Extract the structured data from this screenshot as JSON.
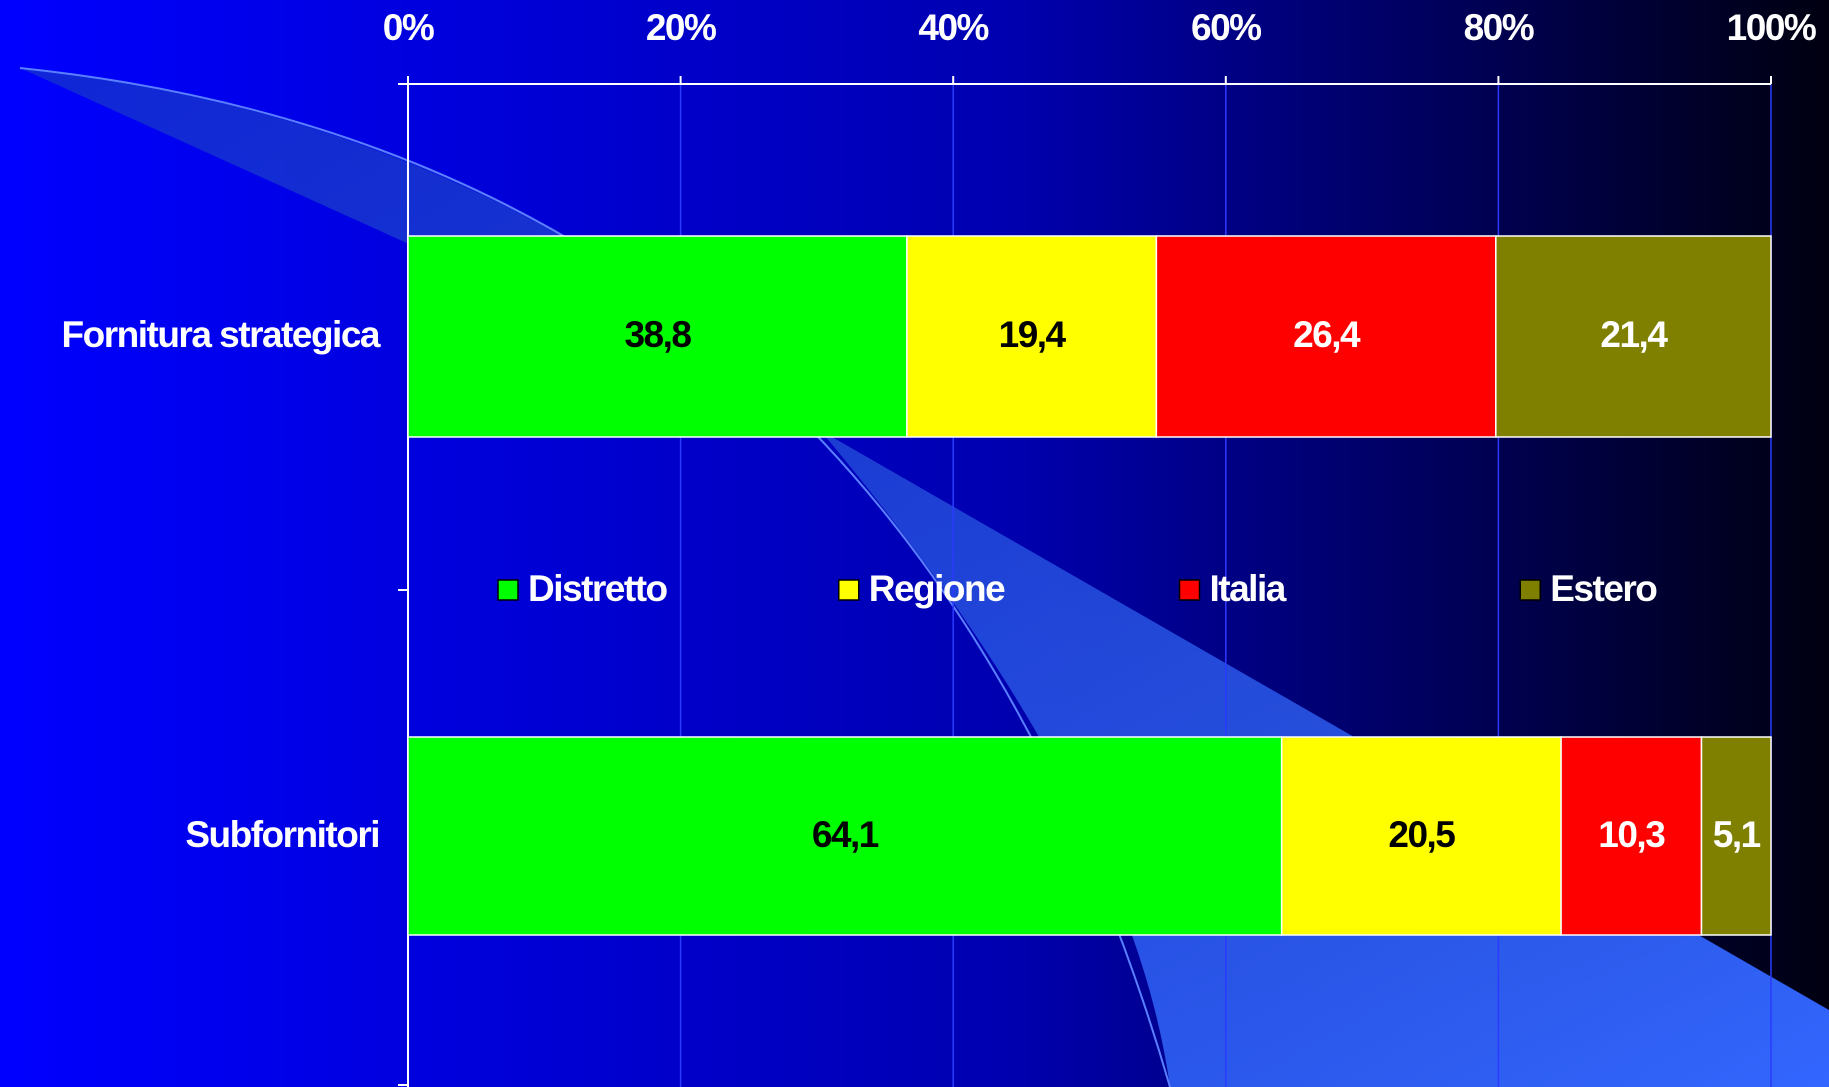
{
  "chart_data": {
    "type": "bar",
    "orientation": "horizontal",
    "stacked_percent": true,
    "categories": [
      "Fornitura strategica",
      "Subfornitori"
    ],
    "series": [
      {
        "name": "Distretto",
        "color": "#00ff00",
        "label_color": "#000000",
        "values": [
          38.8,
          64.1
        ],
        "value_labels": [
          "38,8",
          "64,1"
        ]
      },
      {
        "name": "Regione",
        "color": "#ffff00",
        "label_color": "#000000",
        "values": [
          19.4,
          20.5
        ],
        "value_labels": [
          "19,4",
          "20,5"
        ]
      },
      {
        "name": "Italia",
        "color": "#ff0000",
        "label_color": "#ffffff",
        "values": [
          26.4,
          10.3
        ],
        "value_labels": [
          "26,4",
          "10,3"
        ]
      },
      {
        "name": "Estero",
        "color": "#808000",
        "label_color": "#ffffff",
        "values": [
          21.4,
          5.1
        ],
        "value_labels": [
          "21,4",
          "5,1"
        ]
      }
    ],
    "xlim": [
      0,
      100
    ],
    "xticks": [
      {
        "value": 0,
        "label": "0%"
      },
      {
        "value": 20,
        "label": "20%"
      },
      {
        "value": 40,
        "label": "40%"
      },
      {
        "value": 60,
        "label": "60%"
      },
      {
        "value": 80,
        "label": "80%"
      },
      {
        "value": 100,
        "label": "100%"
      }
    ],
    "grid": true
  }
}
